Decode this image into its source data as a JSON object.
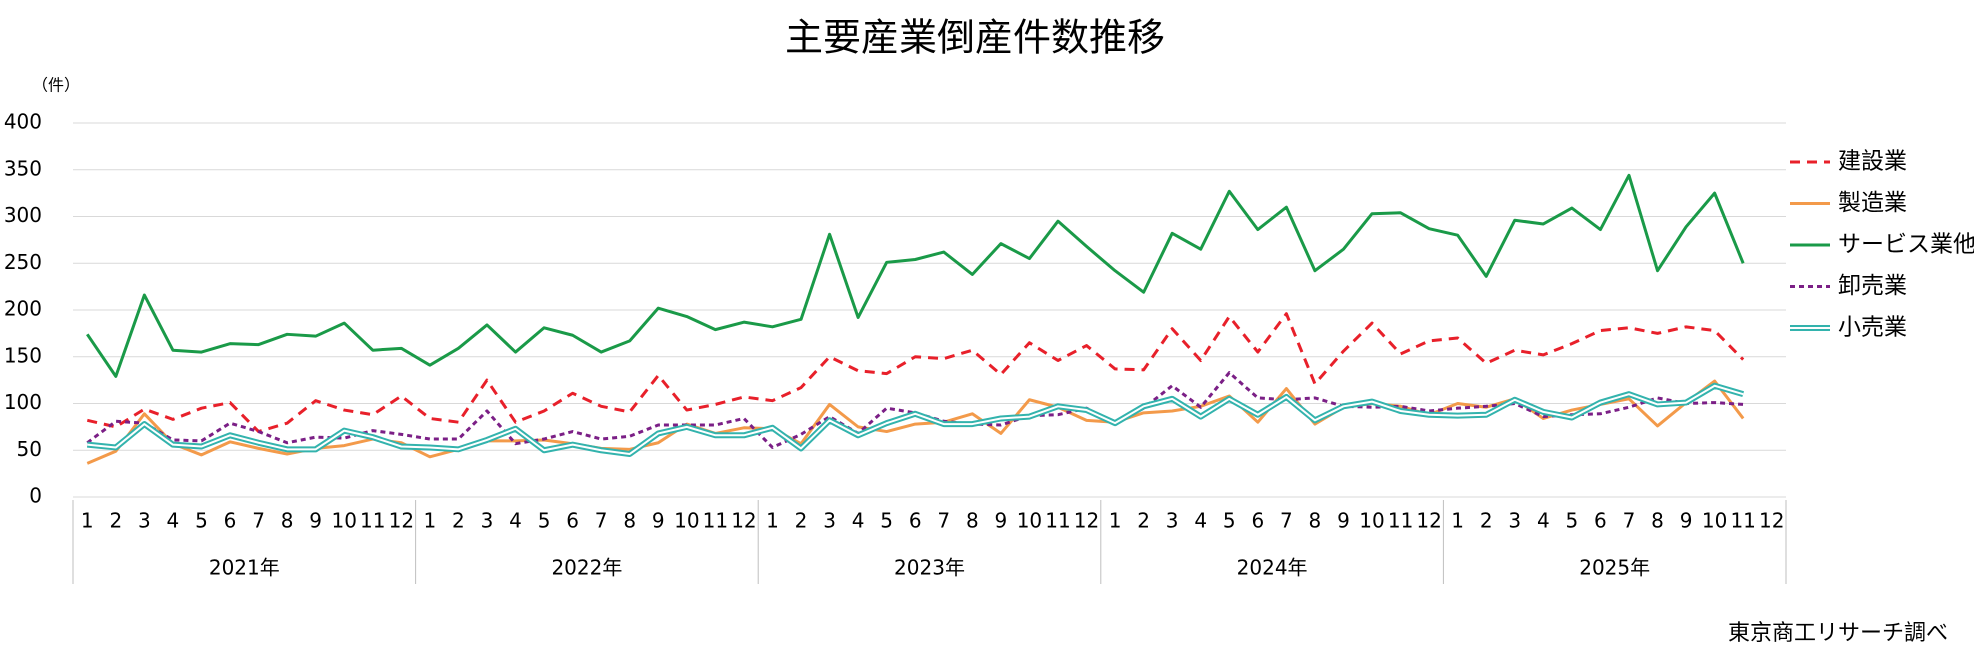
{
  "chart_data": {
    "type": "line",
    "title": "主要産業倒産件数推移",
    "y_unit": "（件）",
    "source": "東京商工リサーチ調べ",
    "categories": [
      "1",
      "2",
      "3",
      "4",
      "5",
      "6",
      "7",
      "8",
      "9",
      "10",
      "11",
      "12",
      "1",
      "2",
      "3",
      "4",
      "5",
      "6",
      "7",
      "8",
      "9",
      "10",
      "11",
      "12",
      "1",
      "2",
      "3",
      "4",
      "5",
      "6",
      "7",
      "8",
      "9",
      "10",
      "11",
      "12",
      "1",
      "2",
      "3",
      "4",
      "5",
      "6",
      "7",
      "8",
      "9",
      "10",
      "11",
      "12",
      "1",
      "2",
      "3",
      "4",
      "5",
      "6",
      "7",
      "8",
      "9",
      "10",
      "11",
      "12"
    ],
    "groups": [
      "2021年",
      "2022年",
      "2023年",
      "2024年",
      "2025年"
    ],
    "ylim": [
      0,
      400
    ],
    "yticks": [
      0,
      50,
      100,
      150,
      200,
      250,
      300,
      350,
      400
    ],
    "grid": true,
    "series": [
      {
        "name": "建設業",
        "color": "#e8202a",
        "line_style": "dashed",
        "values": [
          82,
          75,
          94,
          83,
          95,
          101,
          70,
          79,
          103,
          93,
          88,
          108,
          84,
          80,
          125,
          80,
          92,
          111,
          97,
          91,
          130,
          93,
          99,
          107,
          103,
          117,
          150,
          135,
          132,
          150,
          148,
          157,
          131,
          165,
          146,
          162,
          137,
          136,
          180,
          146,
          193,
          155,
          196,
          121,
          156,
          186,
          153,
          167,
          170,
          143,
          157,
          152,
          164,
          178,
          181,
          175,
          182,
          178,
          147,
          null
        ]
      },
      {
        "name": "製造業",
        "color": "#f39a4a",
        "line_style": "solid",
        "values": [
          36,
          49,
          89,
          57,
          45,
          59,
          52,
          46,
          52,
          55,
          62,
          58,
          43,
          51,
          60,
          60,
          61,
          57,
          52,
          51,
          58,
          78,
          68,
          74,
          73,
          57,
          99,
          75,
          70,
          78,
          80,
          89,
          68,
          104,
          96,
          82,
          80,
          90,
          92,
          97,
          108,
          80,
          116,
          78,
          96,
          100,
          97,
          88,
          100,
          96,
          105,
          84,
          93,
          99,
          105,
          76,
          101,
          124,
          84,
          null
        ]
      },
      {
        "name": "サービス業他",
        "color": "#1a9a48",
        "line_style": "solid",
        "values": [
          174,
          129,
          216,
          157,
          155,
          164,
          163,
          174,
          172,
          186,
          157,
          159,
          141,
          159,
          184,
          155,
          181,
          173,
          155,
          167,
          202,
          193,
          179,
          187,
          182,
          190,
          281,
          192,
          251,
          254,
          262,
          238,
          271,
          255,
          295,
          268,
          242,
          219,
          282,
          265,
          327,
          286,
          310,
          242,
          265,
          303,
          304,
          287,
          280,
          236,
          296,
          292,
          309,
          286,
          344,
          242,
          289,
          325,
          250,
          null
        ]
      },
      {
        "name": "卸売業",
        "color": "#7b1f86",
        "line_style": "dotted",
        "values": [
          58,
          81,
          79,
          61,
          60,
          79,
          70,
          58,
          64,
          63,
          71,
          67,
          62,
          62,
          92,
          57,
          62,
          70,
          62,
          65,
          77,
          77,
          77,
          84,
          53,
          67,
          86,
          68,
          95,
          90,
          81,
          78,
          77,
          87,
          88,
          95,
          78,
          95,
          119,
          96,
          133,
          106,
          104,
          106,
          97,
          96,
          97,
          92,
          95,
          97,
          100,
          86,
          88,
          89,
          96,
          106,
          100,
          101,
          99,
          null
        ]
      },
      {
        "name": "小売業",
        "color": "#33b3ad",
        "line_style": "double",
        "values": [
          56,
          53,
          78,
          56,
          54,
          66,
          58,
          51,
          51,
          71,
          64,
          54,
          53,
          51,
          61,
          73,
          50,
          56,
          50,
          46,
          68,
          75,
          66,
          66,
          74,
          52,
          82,
          66,
          79,
          89,
          78,
          78,
          84,
          86,
          97,
          93,
          79,
          97,
          105,
          86,
          105,
          88,
          107,
          82,
          97,
          102,
          92,
          88,
          87,
          88,
          104,
          91,
          85,
          101,
          110,
          99,
          101,
          119,
          110,
          null
        ]
      }
    ]
  }
}
